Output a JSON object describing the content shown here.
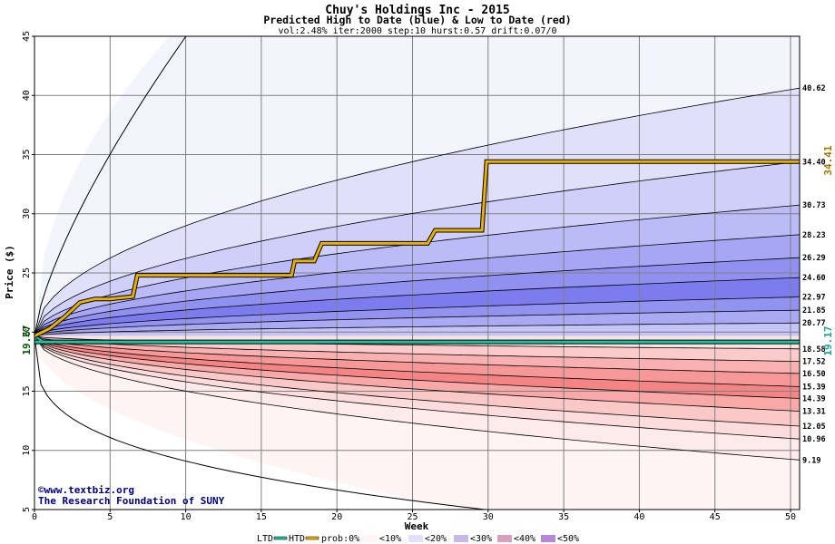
{
  "chart_data": {
    "type": "area",
    "title": "Chuy's Holdings Inc - 2015",
    "subtitle": "Predicted High to Date (blue) &  Low to Date (red)",
    "params": "vol:2.48% iter:2000 step:10 hurst:0.57 drift:0.07/0",
    "xlabel": "Week",
    "ylabel": "Price ($)",
    "xlim": [
      0,
      50.6
    ],
    "ylim": [
      5,
      45
    ],
    "xticks": [
      0,
      5,
      10,
      15,
      20,
      25,
      30,
      35,
      40,
      45,
      50
    ],
    "yticks": [
      5,
      10,
      15,
      20,
      25,
      30,
      35,
      40,
      45
    ],
    "grid": true,
    "start_price": 19.67,
    "start_price_label": "19.67",
    "end_ltd_label": "19.17",
    "end_htd_label": "34.41",
    "ltd_level": 19.17,
    "htd_path": [
      [
        0,
        19.67
      ],
      [
        1,
        20.3
      ],
      [
        2,
        21.3
      ],
      [
        3,
        22.5
      ],
      [
        4,
        22.8
      ],
      [
        5,
        22.8
      ],
      [
        6.5,
        23.0
      ],
      [
        6.8,
        24.8
      ],
      [
        17,
        24.8
      ],
      [
        17.2,
        26.0
      ],
      [
        18.5,
        26.0
      ],
      [
        19,
        27.5
      ],
      [
        26,
        27.5
      ],
      [
        26.5,
        28.6
      ],
      [
        29.6,
        28.6
      ],
      [
        29.9,
        34.4
      ],
      [
        50.6,
        34.4
      ]
    ],
    "upper_quantiles": [
      {
        "end": 40.62,
        "label": "40.62"
      },
      {
        "end": 34.4,
        "label": "34.40"
      },
      {
        "end": 30.73,
        "label": "30.73"
      },
      {
        "end": 28.23,
        "label": "28.23"
      },
      {
        "end": 26.29,
        "label": "26.29"
      },
      {
        "end": 24.6,
        "label": "24.60"
      },
      {
        "end": 22.97,
        "label": "22.97"
      },
      {
        "end": 21.85,
        "label": "21.85"
      },
      {
        "end": 20.77,
        "label": "20.77"
      }
    ],
    "lower_quantiles": [
      {
        "end": 18.58,
        "label": "18.58"
      },
      {
        "end": 17.52,
        "label": "17.52"
      },
      {
        "end": 16.5,
        "label": "16.50"
      },
      {
        "end": 15.39,
        "label": "15.39"
      },
      {
        "end": 14.39,
        "label": "14.39"
      },
      {
        "end": 13.31,
        "label": "13.31"
      },
      {
        "end": 12.05,
        "label": "12.05"
      },
      {
        "end": 10.96,
        "label": "10.96"
      },
      {
        "end": 9.19,
        "label": "9.19"
      }
    ],
    "upper_outer_end": 45,
    "lower_outer_end": 5,
    "colors": {
      "blue_bands": [
        "#f4f4fd",
        "#e0e0fb",
        "#cfcff9",
        "#bbbbf7",
        "#a6a6f4",
        "#9090f1",
        "#7c7cef",
        "#9292f1",
        "#aaaaf4",
        "#c4c4f8"
      ],
      "red_bands": [
        "#fde2e2",
        "#fbcaca",
        "#f9b0b0",
        "#f79898",
        "#f58585",
        "#f9a8a8",
        "#fbc8c8",
        "#fcdcdc",
        "#fdeaea",
        "#fef4f4"
      ],
      "htd": "#e8b000",
      "ltd": "#20c0a0",
      "start_label": "#006000",
      "end_ltd_label": "#20a090",
      "end_htd_label": "#a07800"
    }
  },
  "credit": {
    "line1": "www.textbiz.org",
    "line2": "The Research Foundation of SUNY"
  },
  "legend": {
    "ltd": "LTD",
    "htd": "HTD",
    "prob": "prob:0%",
    "b10": "<10%",
    "b20": "<20%",
    "b30": "<30%",
    "b40": "<40%",
    "b50": "<50%"
  }
}
